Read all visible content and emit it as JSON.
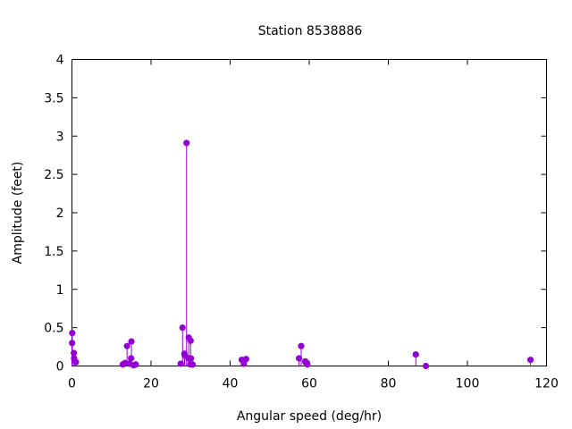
{
  "chart_data": {
    "type": "stem",
    "title": "Station 8538886",
    "xlabel": "Angular speed (deg/hr)",
    "ylabel": "Amplitude (feet)",
    "xlim": [
      0,
      120
    ],
    "ylim": [
      0,
      4
    ],
    "xticks": [
      "0",
      "20",
      "40",
      "60",
      "80",
      "100",
      "120"
    ],
    "yticks": [
      "0",
      "0.5",
      "1",
      "1.5",
      "2",
      "2.5",
      "3",
      "3.5",
      "4"
    ],
    "grid": false,
    "legend": "none",
    "color": "#9400d3",
    "series": [
      {
        "x": [
          0.04,
          0.08,
          0.5,
          0.54,
          1.0,
          12.85,
          13.4,
          13.94,
          14.5,
          14.96,
          15.04,
          15.59,
          16.14,
          27.5,
          27.97,
          28.44,
          28.51,
          28.98,
          29.46,
          29.53,
          29.96,
          30.0,
          30.08,
          30.5,
          42.93,
          43.47,
          44.03,
          57.42,
          57.97,
          58.98,
          59.07,
          59.53,
          86.95,
          89.5,
          115.94
        ],
        "y": [
          0.3,
          0.43,
          0.17,
          0.1,
          0.05,
          0.02,
          0.04,
          0.26,
          0.03,
          0.1,
          0.32,
          0.01,
          0.02,
          0.03,
          0.5,
          0.16,
          0.14,
          2.91,
          0.1,
          0.37,
          0.02,
          0.33,
          0.1,
          0.02,
          0.08,
          0.03,
          0.09,
          0.1,
          0.26,
          0.06,
          0.05,
          0.02,
          0.15,
          0.0,
          0.08
        ]
      }
    ]
  }
}
